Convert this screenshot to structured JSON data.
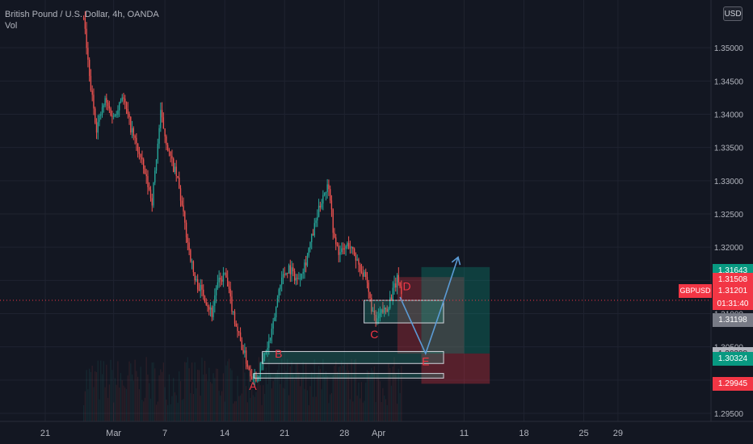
{
  "header": {
    "title": "British Pound / U.S. Dollar, 4h, OANDA",
    "indicator": "Vol",
    "currency_button": "USD"
  },
  "chart_data": {
    "type": "candlestick",
    "symbol": "GBPUSD",
    "timeframe": "4h",
    "ylim": [
      1.295,
      1.355
    ],
    "y_ticks": [
      "1.35000",
      "1.34500",
      "1.34000",
      "1.33500",
      "1.33000",
      "1.32500",
      "1.32000",
      "1.31500",
      "1.31000",
      "1.30500",
      "1.30000",
      "1.29500"
    ],
    "x_ticks": [
      {
        "label": "21",
        "day": 0
      },
      {
        "label": "Mar",
        "day": 8
      },
      {
        "label": "7",
        "day": 14
      },
      {
        "label": "14",
        "day": 21
      },
      {
        "label": "21",
        "day": 28
      },
      {
        "label": "28",
        "day": 35
      },
      {
        "label": "Apr",
        "day": 39
      },
      {
        "label": "11",
        "day": 49
      },
      {
        "label": "18",
        "day": 56
      },
      {
        "label": "25",
        "day": 63
      },
      {
        "label": "29",
        "day": 67
      }
    ],
    "price_path": [
      {
        "day": 4.5,
        "price": 1.3545
      },
      {
        "day": 5.2,
        "price": 1.345
      },
      {
        "day": 6.0,
        "price": 1.338
      },
      {
        "day": 7.0,
        "price": 1.342
      },
      {
        "day": 8.0,
        "price": 1.3395
      },
      {
        "day": 9.0,
        "price": 1.343
      },
      {
        "day": 10.0,
        "price": 1.338
      },
      {
        "day": 11.0,
        "price": 1.334
      },
      {
        "day": 12.5,
        "price": 1.327
      },
      {
        "day": 13.5,
        "price": 1.34
      },
      {
        "day": 14.5,
        "price": 1.334
      },
      {
        "day": 15.5,
        "price": 1.33
      },
      {
        "day": 16.5,
        "price": 1.322
      },
      {
        "day": 17.5,
        "price": 1.315
      },
      {
        "day": 18.5,
        "price": 1.313
      },
      {
        "day": 19.5,
        "price": 1.31
      },
      {
        "day": 20.0,
        "price": 1.314
      },
      {
        "day": 21.0,
        "price": 1.316
      },
      {
        "day": 22.0,
        "price": 1.31
      },
      {
        "day": 22.8,
        "price": 1.306
      },
      {
        "day": 23.5,
        "price": 1.303
      },
      {
        "day": 24.0,
        "price": 1.301
      },
      {
        "day": 24.8,
        "price": 1.3005
      },
      {
        "day": 25.5,
        "price": 1.303
      },
      {
        "day": 26.5,
        "price": 1.307
      },
      {
        "day": 27.5,
        "price": 1.315
      },
      {
        "day": 28.5,
        "price": 1.317
      },
      {
        "day": 29.5,
        "price": 1.315
      },
      {
        "day": 30.5,
        "price": 1.318
      },
      {
        "day": 31.5,
        "price": 1.323
      },
      {
        "day": 32.5,
        "price": 1.328
      },
      {
        "day": 33.2,
        "price": 1.3295
      },
      {
        "day": 33.8,
        "price": 1.321
      },
      {
        "day": 34.5,
        "price": 1.319
      },
      {
        "day": 35.5,
        "price": 1.3205
      },
      {
        "day": 36.5,
        "price": 1.318
      },
      {
        "day": 37.5,
        "price": 1.315
      },
      {
        "day": 38.0,
        "price": 1.312
      },
      {
        "day": 38.6,
        "price": 1.3085
      },
      {
        "day": 39.3,
        "price": 1.31
      },
      {
        "day": 40.0,
        "price": 1.311
      },
      {
        "day": 40.6,
        "price": 1.313
      },
      {
        "day": 41.3,
        "price": 1.3155
      },
      {
        "day": 41.8,
        "price": 1.312
      }
    ],
    "annotations": {
      "labels": [
        {
          "text": "A",
          "day": 24.3,
          "price": 1.2985,
          "color": "#f23645"
        },
        {
          "text": "B",
          "day": 27.3,
          "price": 1.3034,
          "color": "#f23645"
        },
        {
          "text": "C",
          "day": 38.5,
          "price": 1.3063,
          "color": "#f23645"
        },
        {
          "text": "D",
          "day": 42.3,
          "price": 1.3135,
          "color": "#f23645"
        },
        {
          "text": "E",
          "day": 44.5,
          "price": 1.3022,
          "color": "#f23645"
        }
      ],
      "boxes": [
        {
          "day1": 24.4,
          "day2": 46.6,
          "p1": 1.3003,
          "p2": 1.301,
          "stroke": "#d1d4dc",
          "fill": "#22ab94",
          "opacity": 0.25
        },
        {
          "day1": 25.4,
          "day2": 46.6,
          "p1": 1.3025,
          "p2": 1.3043,
          "stroke": "#d1d4dc",
          "fill": "#22ab94",
          "opacity": 0.25
        },
        {
          "day1": 37.3,
          "day2": 46.6,
          "p1": 1.3086,
          "p2": 1.312,
          "stroke": "#d1d4dc",
          "fill": "#22ab94",
          "opacity": 0.25
        }
      ],
      "position_tool": {
        "day1": 40.8,
        "day2": 49.6,
        "entry": 1.31201,
        "target": 1.31643,
        "stop": 1.29945,
        "profit_color": "#089981",
        "loss_color": "#f23645"
      },
      "red_zone": {
        "day1": 41.2,
        "day2": 49.0,
        "p1": 1.304,
        "p2": 1.3155
      },
      "green_zone": {
        "day1": 44.0,
        "day2": 52.0,
        "p1": 1.304,
        "p2": 1.317
      },
      "arrow_path": [
        {
          "day": 41.5,
          "price": 1.3125
        },
        {
          "day": 44.5,
          "price": 1.304
        },
        {
          "day": 46.5,
          "price": 1.3115
        },
        {
          "day": 48.3,
          "price": 1.3185
        }
      ]
    }
  },
  "price_axis_tags": [
    {
      "label": "1.31643",
      "price": 1.31643,
      "color": "#089981"
    },
    {
      "label": "1.31508",
      "price": 1.31508,
      "color": "#f23645"
    },
    {
      "label": "1.31201",
      "price": 1.31201,
      "color": "#f23645"
    },
    {
      "label": "1.31198",
      "price": 1.31198,
      "color": "#787b86"
    },
    {
      "label": "1.30398",
      "price": 1.30398,
      "color": "#b2b5be"
    },
    {
      "label": "1.30324",
      "price": 1.30324,
      "color": "#089981"
    },
    {
      "label": "1.29945",
      "price": 1.29945,
      "color": "#f23645"
    }
  ],
  "symbol_tag": "GBPUSD",
  "countdown": "01:31:40",
  "colors": {
    "background": "#131722",
    "up": "#26a69a",
    "down": "#ef5350",
    "grid": "#1f2330",
    "axis_text": "#b2b5be"
  }
}
